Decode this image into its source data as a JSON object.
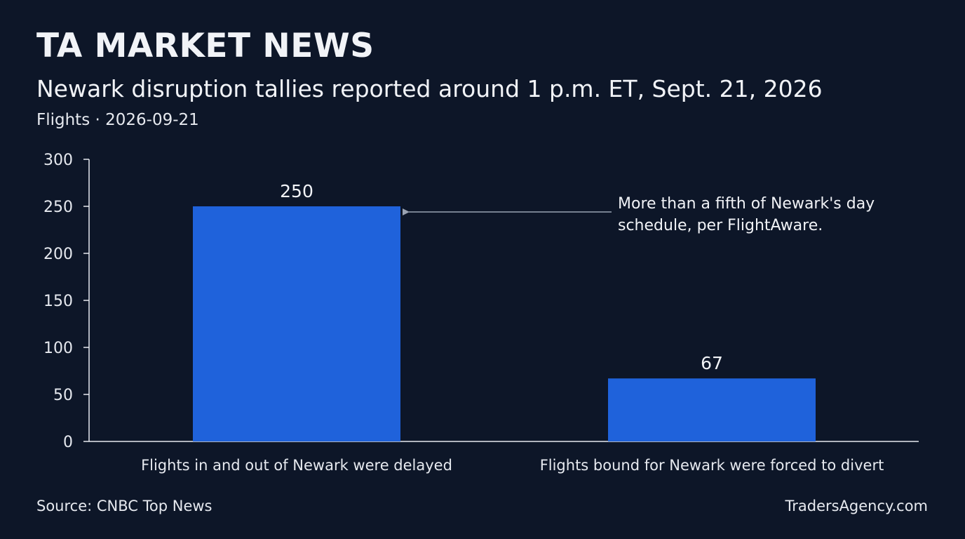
{
  "header": {
    "brand": "TA MARKET NEWS",
    "title": "Newark disruption tallies reported around 1 p.m. ET, Sept. 21, 2026",
    "subtitle": "Flights · 2026-09-21"
  },
  "footer": {
    "source": "Source: CNBC Top News",
    "site": "TradersAgency.com"
  },
  "colors": {
    "background": "#0d1628",
    "bar": "#1f62db",
    "axis": "#e6e9ef",
    "text": "#f1f3f7",
    "annotation_line": "#9aa3b2"
  },
  "chart_data": {
    "type": "bar",
    "categories": [
      "Flights in and out of Newark were delayed",
      "Flights bound for Newark were forced to divert"
    ],
    "values": [
      250,
      67
    ],
    "data_labels": [
      "250",
      "67"
    ],
    "ylim": [
      0,
      300
    ],
    "yticks": [
      0,
      50,
      100,
      150,
      200,
      250,
      300
    ],
    "grid": false,
    "legend": "none",
    "annotation": {
      "lines": [
        "More than a fifth of Newark's day",
        "schedule, per FlightAware."
      ],
      "target_category": 0,
      "target_value": 250
    }
  }
}
